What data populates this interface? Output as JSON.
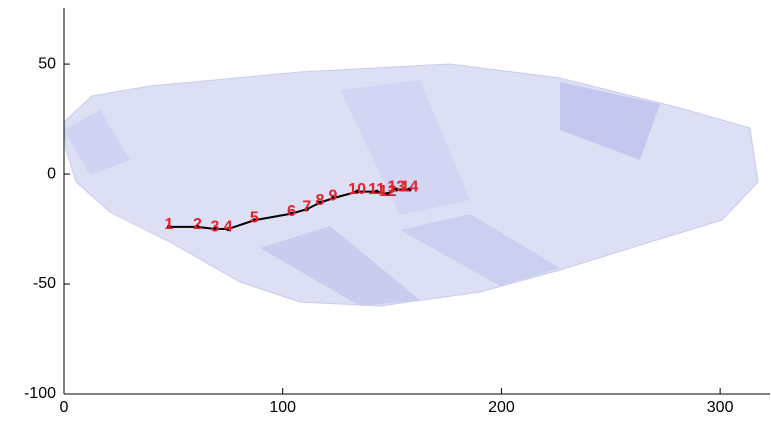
{
  "chart_data": {
    "type": "scatter",
    "x": [
      48,
      61,
      69,
      75,
      87,
      104,
      111,
      117,
      123,
      134,
      143,
      148,
      152,
      158
    ],
    "values": [
      -24,
      -24,
      -25,
      -25,
      -21,
      -18,
      -16,
      -13,
      -11,
      -8,
      -8,
      -9,
      -7,
      -7
    ],
    "labels": [
      "1",
      "2",
      "3",
      "4",
      "5",
      "6",
      "7",
      "8",
      "9",
      "10",
      "11",
      "12",
      "13",
      "14"
    ],
    "label_color": "#e8202a",
    "line_color": "#000000",
    "xlim": [
      0,
      322.8
    ],
    "ylim": [
      -100,
      75.5
    ],
    "xticks": [
      0,
      100,
      200,
      300
    ],
    "yticks": [
      -100,
      -50,
      0,
      50
    ]
  }
}
